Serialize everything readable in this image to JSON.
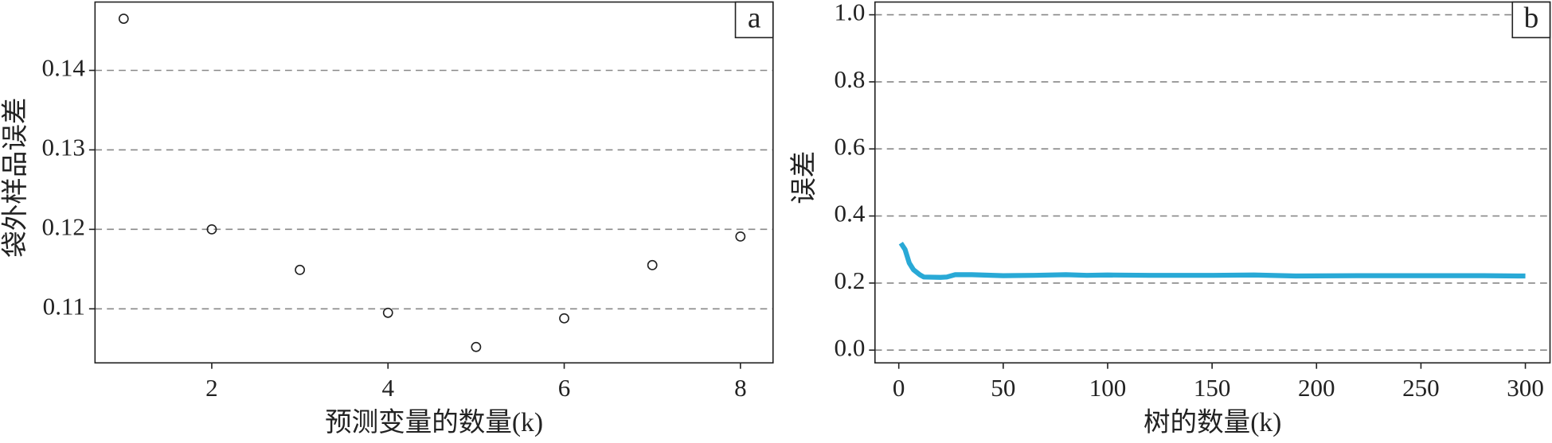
{
  "chart_data": [
    {
      "type": "scatter",
      "panel_label": "a",
      "y_label": "袋外样品误差",
      "x_label": "预测变量的数量(k)",
      "x": [
        1,
        2,
        3,
        4,
        5,
        6,
        7,
        8
      ],
      "values": [
        0.1465,
        0.12,
        0.1149,
        0.1095,
        0.1052,
        0.1088,
        0.1155,
        0.1191
      ],
      "color": "#222222",
      "xlim": [
        0.675,
        8.37
      ],
      "ylim": [
        0.1032,
        0.1486
      ],
      "xticks": [
        2,
        4,
        6,
        8
      ],
      "yticks": [
        0.11,
        0.12,
        0.13,
        0.14
      ],
      "grid": true
    },
    {
      "type": "line",
      "panel_label": "b",
      "y_label": "误差",
      "x_label": "树的数量(k)",
      "x": [
        1,
        3,
        5,
        7,
        10,
        12,
        20,
        23,
        27,
        35,
        50,
        65,
        80,
        90,
        100,
        120,
        150,
        170,
        190,
        220,
        250,
        280,
        300
      ],
      "values": [
        0.319,
        0.3,
        0.26,
        0.24,
        0.225,
        0.218,
        0.217,
        0.218,
        0.225,
        0.225,
        0.222,
        0.223,
        0.225,
        0.223,
        0.224,
        0.223,
        0.223,
        0.224,
        0.221,
        0.222,
        0.222,
        0.222,
        0.221
      ],
      "color": "#29a9d6",
      "xlim": [
        -11.4,
        311.8
      ],
      "ylim": [
        -0.038,
        1.038
      ],
      "xticks": [
        0,
        50,
        100,
        150,
        200,
        250,
        300
      ],
      "yticks": [
        {
          "value": 0,
          "label": "0.0"
        },
        0.2,
        0.4,
        0.6,
        0.8,
        {
          "value": 1,
          "label": "1.0"
        }
      ],
      "grid": true
    }
  ]
}
